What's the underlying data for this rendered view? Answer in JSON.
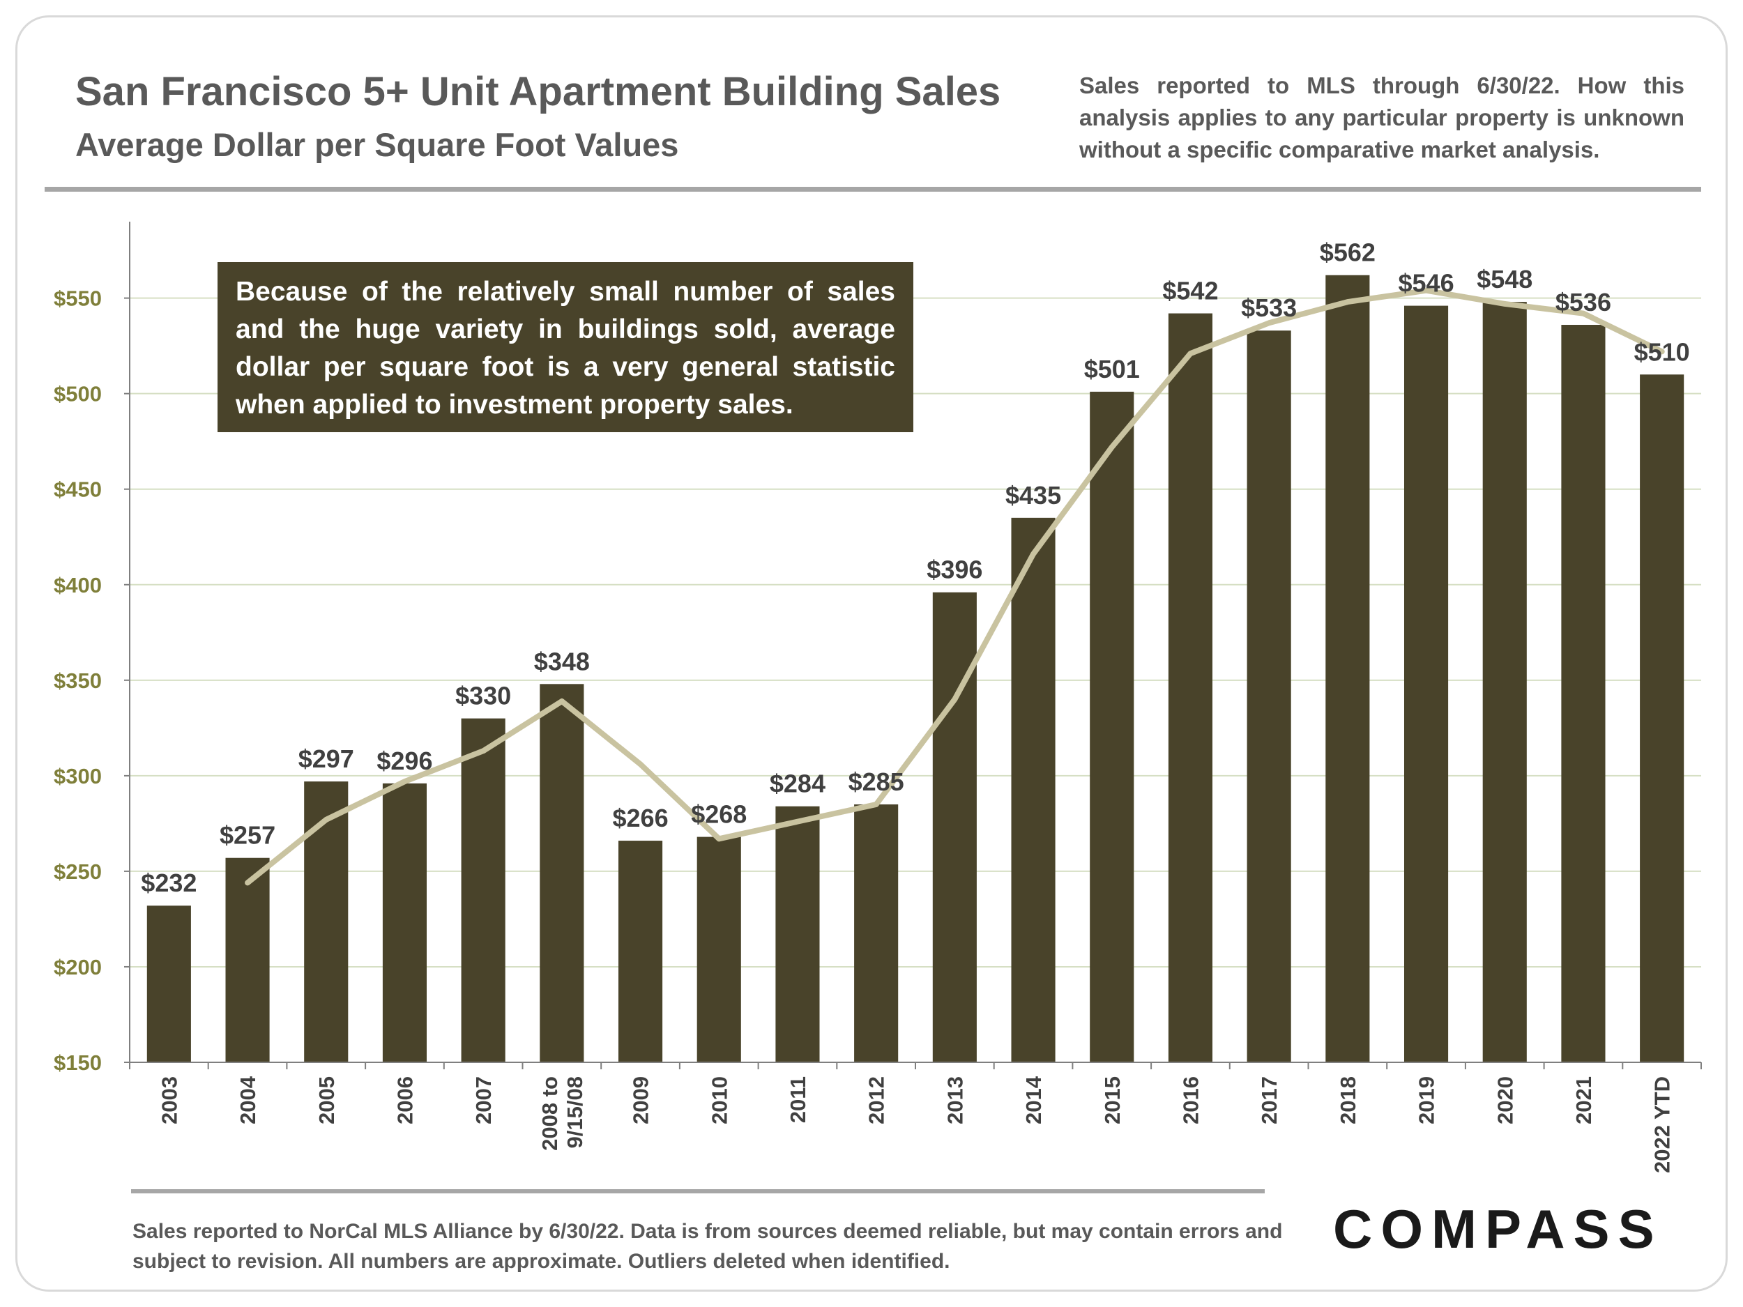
{
  "header": {
    "title": "San Francisco 5+ Unit Apartment Building Sales",
    "subtitle": "Average Dollar per Square Foot Values",
    "note": "Sales reported to MLS through 6/30/22. How this analysis applies to any particular property is unknown without a specific comparative market analysis."
  },
  "callout": "Because of the relatively small number of sales and the huge variety in buildings sold, average dollar per square foot is a very general statistic when applied to investment property sales.",
  "footer": "Sales reported to NorCal MLS Alliance by 6/30/22. Data is from sources deemed reliable, but may contain errors and subject to revision. All numbers are approximate.  Outliers deleted when identified.",
  "logo": "COMPASS",
  "colors": {
    "bar": "#49432a",
    "trend_line": "#c9c3a0",
    "grid": "#d6dfc4",
    "axis_text": "#7f7f3a",
    "text": "#404040"
  },
  "chart_data": {
    "type": "bar",
    "categories": [
      "2003",
      "2004",
      "2005",
      "2006",
      "2007",
      "2008 to 9/15/08",
      "2009",
      "2010",
      "2011",
      "2012",
      "2013",
      "2014",
      "2015",
      "2016",
      "2017",
      "2018",
      "2019",
      "2020",
      "2021",
      "2022 YTD"
    ],
    "category_lines": [
      [
        "2003"
      ],
      [
        "2004"
      ],
      [
        "2005"
      ],
      [
        "2006"
      ],
      [
        "2007"
      ],
      [
        "2008 to",
        "9/15/08"
      ],
      [
        "2009"
      ],
      [
        "2010"
      ],
      [
        "2011"
      ],
      [
        "2012"
      ],
      [
        "2013"
      ],
      [
        "2014"
      ],
      [
        "2015"
      ],
      [
        "2016"
      ],
      [
        "2017"
      ],
      [
        "2018"
      ],
      [
        "2019"
      ],
      [
        "2020"
      ],
      [
        "2021"
      ],
      [
        "2022 YTD"
      ]
    ],
    "series": [
      {
        "type": "bar",
        "values": [
          232,
          257,
          297,
          296,
          330,
          348,
          266,
          268,
          284,
          285,
          396,
          435,
          501,
          542,
          533,
          562,
          546,
          548,
          536,
          510
        ]
      },
      {
        "type": "line",
        "values": [
          null,
          244,
          277,
          297,
          313,
          339,
          306,
          267,
          276,
          285,
          340,
          416,
          472,
          521,
          537,
          548,
          554,
          547,
          542,
          522
        ]
      }
    ],
    "data_labels": [
      "$232",
      "$257",
      "$297",
      "$296",
      "$330",
      "$348",
      "$266",
      "$268",
      "$284",
      "$285",
      "$396",
      "$435",
      "$501",
      "$542",
      "$533",
      "$562",
      "$546",
      "$548",
      "$536",
      "$510"
    ],
    "y_ticks": [
      150,
      200,
      250,
      300,
      350,
      400,
      450,
      500,
      550
    ],
    "y_tick_labels": [
      "$150",
      "$200",
      "$250",
      "$300",
      "$350",
      "$400",
      "$450",
      "$500",
      "$550"
    ],
    "ylim": [
      150,
      590
    ],
    "grid": true,
    "title": "",
    "xlabel": "",
    "ylabel": ""
  }
}
